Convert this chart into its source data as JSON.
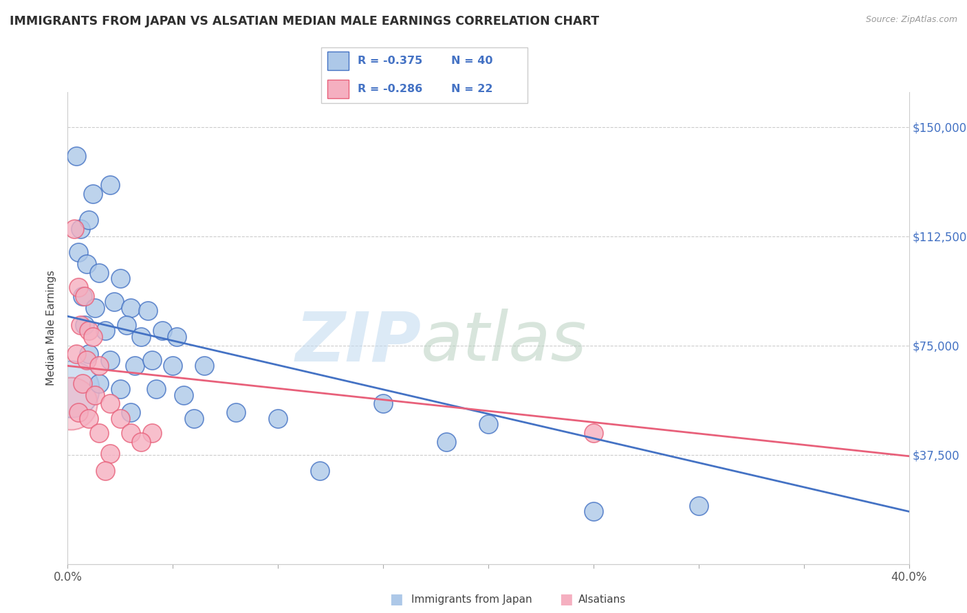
{
  "title": "IMMIGRANTS FROM JAPAN VS ALSATIAN MEDIAN MALE EARNINGS CORRELATION CHART",
  "source": "Source: ZipAtlas.com",
  "ylabel": "Median Male Earnings",
  "yticks": [
    0,
    37500,
    75000,
    112500,
    150000
  ],
  "ytick_labels": [
    "",
    "$37,500",
    "$75,000",
    "$112,500",
    "$150,000"
  ],
  "xmin": 0.0,
  "xmax": 40.0,
  "ymin": 5000,
  "ymax": 162000,
  "blue_R": "-0.375",
  "blue_N": "40",
  "pink_R": "-0.286",
  "pink_N": "22",
  "legend_label_blue": "Immigrants from Japan",
  "legend_label_pink": "Alsatians",
  "blue_color": "#adc8e8",
  "pink_color": "#f5afc0",
  "blue_line_color": "#4472C4",
  "pink_line_color": "#E8607A",
  "blue_scatter": [
    [
      0.4,
      140000
    ],
    [
      1.2,
      127000
    ],
    [
      2.0,
      130000
    ],
    [
      0.6,
      115000
    ],
    [
      1.0,
      118000
    ],
    [
      0.5,
      107000
    ],
    [
      0.9,
      103000
    ],
    [
      1.5,
      100000
    ],
    [
      2.5,
      98000
    ],
    [
      0.7,
      92000
    ],
    [
      1.3,
      88000
    ],
    [
      2.2,
      90000
    ],
    [
      3.0,
      88000
    ],
    [
      3.8,
      87000
    ],
    [
      0.8,
      82000
    ],
    [
      1.8,
      80000
    ],
    [
      2.8,
      82000
    ],
    [
      3.5,
      78000
    ],
    [
      4.5,
      80000
    ],
    [
      5.2,
      78000
    ],
    [
      1.0,
      72000
    ],
    [
      2.0,
      70000
    ],
    [
      3.2,
      68000
    ],
    [
      4.0,
      70000
    ],
    [
      5.0,
      68000
    ],
    [
      6.5,
      68000
    ],
    [
      1.5,
      62000
    ],
    [
      2.5,
      60000
    ],
    [
      4.2,
      60000
    ],
    [
      5.5,
      58000
    ],
    [
      3.0,
      52000
    ],
    [
      6.0,
      50000
    ],
    [
      8.0,
      52000
    ],
    [
      10.0,
      50000
    ],
    [
      15.0,
      55000
    ],
    [
      20.0,
      48000
    ],
    [
      12.0,
      32000
    ],
    [
      25.0,
      18000
    ],
    [
      18.0,
      42000
    ],
    [
      30.0,
      20000
    ]
  ],
  "pink_scatter": [
    [
      0.3,
      115000
    ],
    [
      0.5,
      95000
    ],
    [
      0.8,
      92000
    ],
    [
      0.6,
      82000
    ],
    [
      1.0,
      80000
    ],
    [
      1.2,
      78000
    ],
    [
      0.4,
      72000
    ],
    [
      0.9,
      70000
    ],
    [
      1.5,
      68000
    ],
    [
      0.7,
      62000
    ],
    [
      1.3,
      58000
    ],
    [
      2.0,
      55000
    ],
    [
      0.5,
      52000
    ],
    [
      1.0,
      50000
    ],
    [
      2.5,
      50000
    ],
    [
      1.5,
      45000
    ],
    [
      3.0,
      45000
    ],
    [
      4.0,
      45000
    ],
    [
      2.0,
      38000
    ],
    [
      3.5,
      42000
    ],
    [
      1.8,
      32000
    ],
    [
      25.0,
      45000
    ]
  ],
  "blue_bubble_x": 0.15,
  "blue_bubble_y": 60000,
  "blue_bubble_size": 3500,
  "pink_bubble_x": 0.15,
  "pink_bubble_y": 55000,
  "pink_bubble_size": 3000,
  "blue_line_x": [
    0.0,
    40.0
  ],
  "blue_line_y": [
    85000,
    18000
  ],
  "pink_line_x": [
    0.0,
    40.0
  ],
  "pink_line_y": [
    68000,
    37000
  ],
  "title_color": "#2F2F2F",
  "grid_color": "#CCCCCC",
  "watermark_zip_color": "#C5DCF0",
  "watermark_atlas_color": "#B8D0C0"
}
